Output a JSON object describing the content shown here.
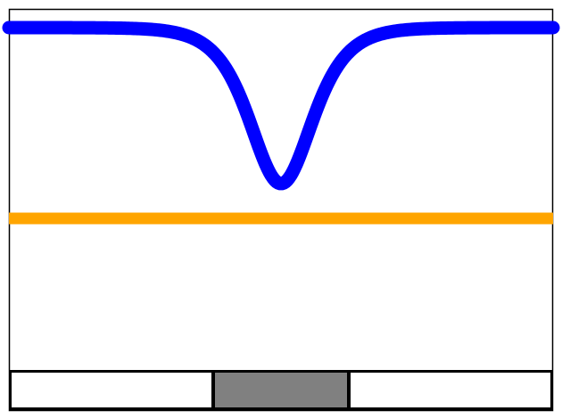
{
  "diagram": {
    "colors": {
      "background": "#ffffff",
      "frame": "#000000",
      "signal_curve": "#0000ff",
      "reference_line": "#ffa500",
      "center_block": "#808080",
      "side_block": "#ffffff"
    },
    "curve": {
      "shape": "inverted gaussian dip",
      "baseline_level": 1.0,
      "dip_minimum_level": 0.0,
      "dip_center": 0.5
    },
    "reference_line": {
      "level": -0.2
    },
    "bottom_bar": {
      "segments": [
        {
          "kind": "left-block",
          "fill": "#ffffff"
        },
        {
          "kind": "center-block",
          "fill": "#808080"
        },
        {
          "kind": "right-block",
          "fill": "#ffffff"
        }
      ]
    }
  }
}
